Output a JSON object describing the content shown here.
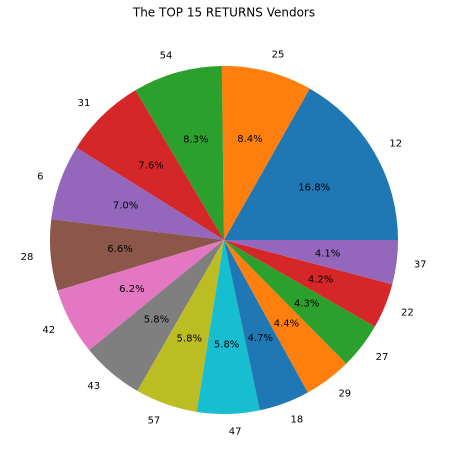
{
  "chart_data": {
    "type": "pie",
    "title": "The TOP 15 RETURNS Vendors",
    "categories": [
      "12",
      "25",
      "54",
      "31",
      "6",
      "28",
      "42",
      "43",
      "57",
      "47",
      "18",
      "29",
      "27",
      "22",
      "37"
    ],
    "values": [
      16.8,
      8.4,
      8.3,
      7.6,
      7.0,
      6.6,
      6.2,
      5.8,
      5.8,
      5.8,
      4.7,
      4.4,
      4.3,
      4.2,
      4.1
    ],
    "value_labels": [
      "16.8%",
      "8.4%",
      "8.3%",
      "7.6%",
      "7.0%",
      "6.6%",
      "6.2%",
      "5.8%",
      "5.8%",
      "5.8%",
      "4.7%",
      "4.4%",
      "4.3%",
      "4.2%",
      "4.1%"
    ],
    "colors": [
      "#1f77b4",
      "#ff7f0e",
      "#2ca02c",
      "#d62728",
      "#9467bd",
      "#8c564b",
      "#e377c2",
      "#7f7f7f",
      "#bcbd22",
      "#17becf",
      "#1f77b4",
      "#ff7f0e",
      "#2ca02c",
      "#d62728",
      "#9467bd"
    ]
  }
}
